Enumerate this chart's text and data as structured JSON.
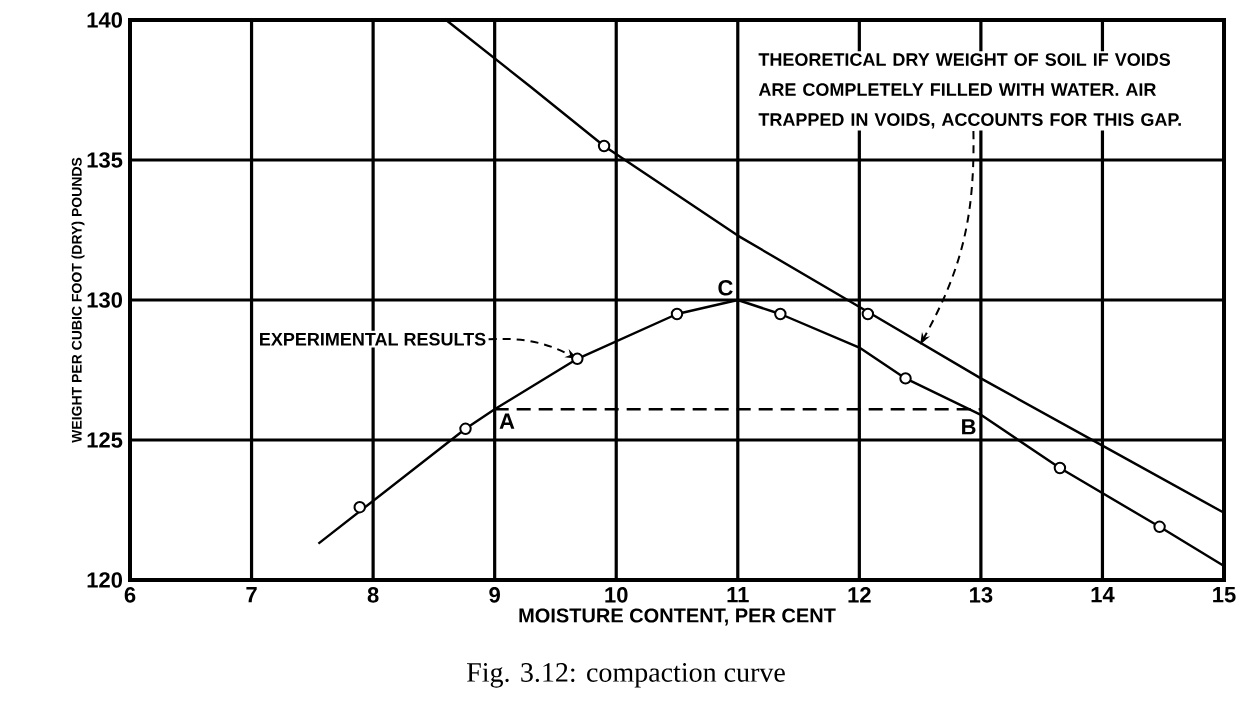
{
  "chart_data": {
    "type": "line",
    "xlabel": "MOISTURE CONTENT, PER CENT",
    "ylabel": "WEIGHT PER CUBIC FOOT (DRY) POUNDS",
    "xlim": [
      6,
      15
    ],
    "ylim": [
      120,
      140
    ],
    "xticks": [
      6,
      7,
      8,
      9,
      10,
      11,
      12,
      13,
      14,
      15
    ],
    "yticks": [
      120,
      125,
      130,
      135,
      140
    ],
    "grid": true,
    "series": [
      {
        "color": "#000000",
        "marker": "none",
        "line_style": "solid",
        "x": [
          8.6,
          9.3,
          9.9,
          11,
          12.1,
          13,
          14,
          15
        ],
        "values": [
          140,
          137.6,
          135.5,
          132.3,
          129.5,
          127.2,
          124.8,
          122.4
        ]
      },
      {
        "type": "scatter",
        "color": "#000000",
        "marker": "circle",
        "x": [
          9.9,
          12.07
        ],
        "values": [
          135.5,
          129.5
        ]
      },
      {
        "color": "#000000",
        "marker": "none",
        "line_style": "solid",
        "x": [
          7.55,
          8.76,
          9,
          9.68,
          10.5,
          11,
          11.35,
          12,
          12.38,
          13,
          13.65,
          14.47,
          15
        ],
        "values": [
          121.3,
          125.4,
          126.1,
          127.9,
          129.5,
          130,
          129.5,
          128.3,
          127.2,
          125.9,
          124,
          121.9,
          120.5
        ]
      },
      {
        "type": "scatter",
        "color": "#000000",
        "marker": "circle",
        "x": [
          7.89,
          8.76,
          9.68,
          10.5,
          11.35,
          12.38,
          13.65,
          14.47
        ],
        "values": [
          122.6,
          125.4,
          127.9,
          129.5,
          129.5,
          127.2,
          124,
          121.9
        ]
      },
      {
        "color": "#000000",
        "marker": "none",
        "line_style": "dashed",
        "x": [
          9,
          13
        ],
        "values": [
          126.1,
          126.1
        ]
      }
    ],
    "annotations": [
      {
        "text": "EXPERIMENTAL RESULTS",
        "x": 9.68,
        "y": 127.9
      },
      {
        "text": "THEORETICAL DRY WEIGHT OF SOIL IF VOIDS ARE COMPLETELY FILLED WITH WATER. AIR TRAPPED IN VOIDS, ACCOUNTS FOR THIS GAP.",
        "x": 12.5,
        "y": 128.4
      },
      {
        "text": "A",
        "x": 9,
        "y": 126.1
      },
      {
        "text": "B",
        "x": 13,
        "y": 125.9
      },
      {
        "text": "C",
        "x": 11,
        "y": 130
      },
      "Fig. 3.12: compaction curve"
    ]
  }
}
